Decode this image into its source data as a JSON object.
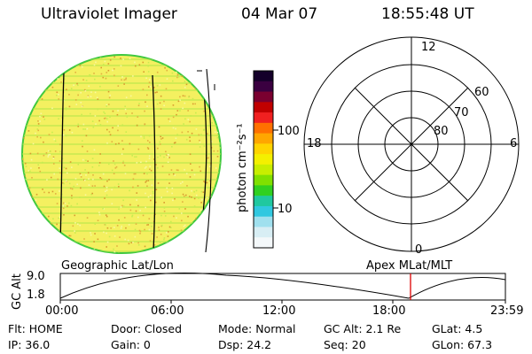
{
  "header": {
    "instrument": "Ultraviolet Imager",
    "date": "04 Mar 07",
    "time": "18:55:48 UT"
  },
  "colorbar": {
    "unit_label": "photon cm⁻²s⁻¹",
    "ticks": [
      "100",
      "10"
    ],
    "colors": [
      "#14002a",
      "#3a0040",
      "#7a0030",
      "#c00000",
      "#f02020",
      "#ff7000",
      "#ffa600",
      "#ffd400",
      "#f4f000",
      "#c8ee00",
      "#80e000",
      "#30d020",
      "#20c8a0",
      "#30c8e0",
      "#a0e0ee",
      "#d8eef4",
      "#f4f8fa"
    ]
  },
  "polar": {
    "labels": {
      "top": "12",
      "left": "18",
      "right": "6",
      "bottom": "0",
      "lat60": "60",
      "lat70": "70",
      "lat80": "80"
    }
  },
  "gc_plot": {
    "ylabel": "GC Alt",
    "ymax": "9.0",
    "ymin": "1.8",
    "left_title": "Geographic Lat/Lon",
    "right_title": "Apex MLat/MLT",
    "xticks": [
      "00:00",
      "06:00",
      "12:00",
      "18:00",
      "23:59"
    ],
    "current_time_marker_color": "#dd0000"
  },
  "info": {
    "flt": "Flt:  HOME",
    "ip": "IP:  36.0",
    "door": "Door:  Closed",
    "gain": "Gain:   0",
    "mode": "Mode:  Normal",
    "dsp": "Dsp:      24.2",
    "gcalt": "GC Alt:  2.1  Re",
    "seq": "Seq:  20",
    "glat": "GLat:      4.5",
    "glon": "GLon:   67.3"
  }
}
